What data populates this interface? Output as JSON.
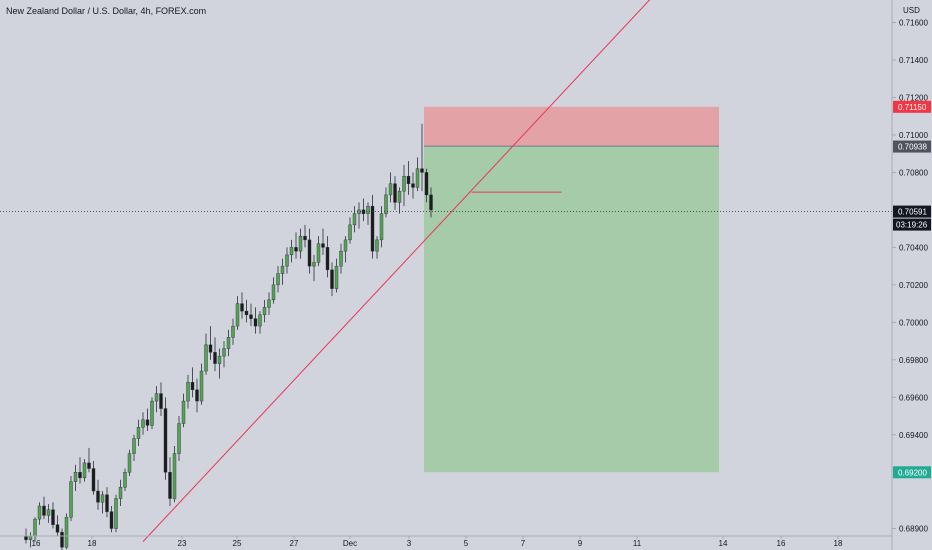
{
  "header": {
    "title": "New Zealand Dollar / U.S. Dollar, 4h, FOREX.com",
    "currency": "USD"
  },
  "colors": {
    "background": "#d1d4dc",
    "up": "#53a553",
    "down": "#1c1c1c",
    "stop_zone": "#e3a2a6",
    "target_zone": "#a6cba9",
    "trendline": "#e8385a",
    "price_label": "#131722",
    "stop_label": "#f23645",
    "target_label": "#22ab94",
    "entry_label": "#50535e"
  },
  "chart_data": {
    "type": "candlestick",
    "title": "New Zealand Dollar / U.S. Dollar, 4h, FOREX.com",
    "ylabel": "USD",
    "ylim": [
      0.6886,
      0.7172
    ],
    "y_ticks": [
      "0.71600",
      "0.71400",
      "0.71200",
      "0.71000",
      "0.70800",
      "0.70400",
      "0.70200",
      "0.70000",
      "0.69800",
      "0.69600",
      "0.69400",
      "0.68900"
    ],
    "x_ticks": [
      "16",
      "18",
      "23",
      "25",
      "27",
      "Dec",
      "3",
      "5",
      "7",
      "9",
      "11",
      "14",
      "16",
      "18"
    ],
    "price_labels": {
      "stop": "0.71150",
      "entry": "0.70938",
      "current": "0.70591",
      "countdown": "03:19:26",
      "target": "0.69200"
    },
    "position": {
      "type": "short",
      "entry": 0.7094,
      "stop": 0.7115,
      "target": 0.692
    },
    "trendline": {
      "from": {
        "bar": 26,
        "price": 0.6883
      },
      "to": {
        "bar": 144,
        "price": 0.7186
      }
    },
    "horizontal_line": {
      "price": 0.70695,
      "from_bar": 99,
      "to_bar": 119
    },
    "candles": [
      [
        0.6886,
        0.689,
        0.6882,
        0.6884
      ],
      [
        0.6884,
        0.6888,
        0.688,
        0.6886
      ],
      [
        0.6886,
        0.6896,
        0.6883,
        0.6895
      ],
      [
        0.6895,
        0.6904,
        0.6892,
        0.6902
      ],
      [
        0.6902,
        0.6907,
        0.6895,
        0.6897
      ],
      [
        0.6897,
        0.6903,
        0.6893,
        0.69
      ],
      [
        0.69,
        0.6904,
        0.689,
        0.6892
      ],
      [
        0.6892,
        0.6897,
        0.6886,
        0.6888
      ],
      [
        0.6888,
        0.689,
        0.6878,
        0.688
      ],
      [
        0.688,
        0.6898,
        0.6879,
        0.6896
      ],
      [
        0.6896,
        0.6918,
        0.6894,
        0.6915
      ],
      [
        0.6915,
        0.6924,
        0.691,
        0.692
      ],
      [
        0.692,
        0.6928,
        0.6914,
        0.6917
      ],
      [
        0.6917,
        0.6927,
        0.6915,
        0.6925
      ],
      [
        0.6925,
        0.6933,
        0.692,
        0.6922
      ],
      [
        0.6922,
        0.6926,
        0.6908,
        0.691
      ],
      [
        0.691,
        0.6916,
        0.69,
        0.6904
      ],
      [
        0.6904,
        0.691,
        0.6898,
        0.6908
      ],
      [
        0.6908,
        0.6912,
        0.6896,
        0.6899
      ],
      [
        0.6899,
        0.6902,
        0.6888,
        0.689
      ],
      [
        0.689,
        0.6908,
        0.6888,
        0.6906
      ],
      [
        0.6906,
        0.6916,
        0.6902,
        0.6912
      ],
      [
        0.6912,
        0.6922,
        0.691,
        0.692
      ],
      [
        0.692,
        0.6932,
        0.6918,
        0.693
      ],
      [
        0.693,
        0.694,
        0.6926,
        0.6938
      ],
      [
        0.6938,
        0.6948,
        0.6934,
        0.6944
      ],
      [
        0.6944,
        0.6952,
        0.694,
        0.6948
      ],
      [
        0.6948,
        0.6954,
        0.6942,
        0.6945
      ],
      [
        0.6945,
        0.696,
        0.6943,
        0.6958
      ],
      [
        0.6958,
        0.6966,
        0.6952,
        0.6962
      ],
      [
        0.6962,
        0.6968,
        0.695,
        0.6954
      ],
      [
        0.6954,
        0.696,
        0.6916,
        0.692
      ],
      [
        0.692,
        0.6928,
        0.6902,
        0.6906
      ],
      [
        0.6906,
        0.6934,
        0.6904,
        0.693
      ],
      [
        0.693,
        0.695,
        0.6926,
        0.6946
      ],
      [
        0.6946,
        0.6962,
        0.6944,
        0.6958
      ],
      [
        0.6958,
        0.6972,
        0.6954,
        0.6968
      ],
      [
        0.6968,
        0.6976,
        0.696,
        0.6964
      ],
      [
        0.6964,
        0.697,
        0.6952,
        0.6958
      ],
      [
        0.6958,
        0.6978,
        0.6956,
        0.6974
      ],
      [
        0.6974,
        0.6994,
        0.6972,
        0.6988
      ],
      [
        0.6988,
        0.6998,
        0.698,
        0.6984
      ],
      [
        0.6984,
        0.6992,
        0.6974,
        0.6978
      ],
      [
        0.6978,
        0.6986,
        0.697,
        0.6982
      ],
      [
        0.6982,
        0.699,
        0.6976,
        0.6986
      ],
      [
        0.6986,
        0.6996,
        0.6982,
        0.6992
      ],
      [
        0.6992,
        0.7002,
        0.6988,
        0.6998
      ],
      [
        0.6998,
        0.7014,
        0.6996,
        0.701
      ],
      [
        0.701,
        0.7016,
        0.7002,
        0.7006
      ],
      [
        0.7006,
        0.7012,
        0.7,
        0.7004
      ],
      [
        0.7004,
        0.701,
        0.6998,
        0.7002
      ],
      [
        0.7002,
        0.7008,
        0.6994,
        0.6998
      ],
      [
        0.6998,
        0.7006,
        0.6994,
        0.7004
      ],
      [
        0.7004,
        0.7012,
        0.7,
        0.7008
      ],
      [
        0.7008,
        0.7016,
        0.7004,
        0.7012
      ],
      [
        0.7012,
        0.7024,
        0.701,
        0.702
      ],
      [
        0.702,
        0.703,
        0.7016,
        0.7026
      ],
      [
        0.7026,
        0.7034,
        0.702,
        0.703
      ],
      [
        0.703,
        0.704,
        0.7026,
        0.7036
      ],
      [
        0.7036,
        0.7044,
        0.7032,
        0.704
      ],
      [
        0.704,
        0.7048,
        0.7034,
        0.7038
      ],
      [
        0.7038,
        0.705,
        0.7034,
        0.7046
      ],
      [
        0.7046,
        0.7052,
        0.704,
        0.7044
      ],
      [
        0.7044,
        0.705,
        0.7026,
        0.703
      ],
      [
        0.703,
        0.7036,
        0.7022,
        0.7032
      ],
      [
        0.7032,
        0.7046,
        0.703,
        0.7042
      ],
      [
        0.7042,
        0.705,
        0.7036,
        0.704
      ],
      [
        0.704,
        0.7046,
        0.7024,
        0.7028
      ],
      [
        0.7028,
        0.7032,
        0.7014,
        0.7018
      ],
      [
        0.7018,
        0.7034,
        0.7016,
        0.703
      ],
      [
        0.703,
        0.7042,
        0.7026,
        0.7038
      ],
      [
        0.7038,
        0.7046,
        0.7032,
        0.7044
      ],
      [
        0.7044,
        0.7056,
        0.7042,
        0.7052
      ],
      [
        0.7052,
        0.7062,
        0.7048,
        0.7058
      ],
      [
        0.7058,
        0.7064,
        0.705,
        0.706
      ],
      [
        0.706,
        0.7066,
        0.7054,
        0.7058
      ],
      [
        0.7058,
        0.7064,
        0.7052,
        0.7062
      ],
      [
        0.7062,
        0.7068,
        0.7034,
        0.7038
      ],
      [
        0.7038,
        0.7046,
        0.7034,
        0.7044
      ],
      [
        0.7044,
        0.7062,
        0.704,
        0.7058
      ],
      [
        0.7058,
        0.7072,
        0.7056,
        0.7068
      ],
      [
        0.7068,
        0.708,
        0.7064,
        0.7074
      ],
      [
        0.7074,
        0.7078,
        0.706,
        0.7064
      ],
      [
        0.7064,
        0.7072,
        0.7058,
        0.707
      ],
      [
        0.707,
        0.7084,
        0.7062,
        0.7078
      ],
      [
        0.7078,
        0.7086,
        0.7068,
        0.7074
      ],
      [
        0.7074,
        0.708,
        0.7066,
        0.7072
      ],
      [
        0.7072,
        0.7088,
        0.707,
        0.7082
      ],
      [
        0.7082,
        0.7106,
        0.707,
        0.708
      ],
      [
        0.708,
        0.7082,
        0.7064,
        0.7068
      ],
      [
        0.7068,
        0.7072,
        0.7056,
        0.706
      ]
    ]
  }
}
